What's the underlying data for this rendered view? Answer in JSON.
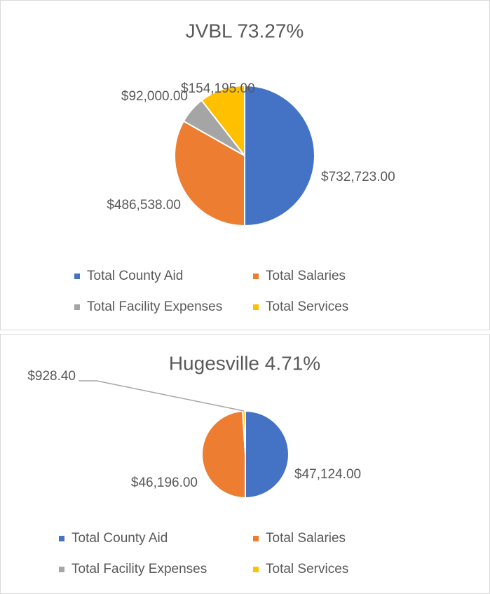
{
  "chart_data": [
    {
      "type": "pie",
      "title": "JVBL 73.27%",
      "categories": [
        "Total County Aid",
        "Total Salaries",
        "Total Facility Expenses",
        "Total Services"
      ],
      "values": [
        732723,
        486538,
        92000,
        154195
      ],
      "value_labels": [
        "$732,723.00",
        "$486,538.00",
        "$92,000.00",
        "$154,195.00"
      ],
      "colors": [
        "#4472c4",
        "#ed7d31",
        "#a5a5a5",
        "#ffc000"
      ]
    },
    {
      "type": "pie",
      "title": "Hugesville 4.71%",
      "categories": [
        "Total County Aid",
        "Total Salaries",
        "Total Facility Expenses",
        "Total Services"
      ],
      "values": [
        47124,
        46196,
        null,
        928.4
      ],
      "value_labels": [
        "$47,124.00",
        "$46,196.00",
        null,
        "$928.40"
      ],
      "colors": [
        "#4472c4",
        "#ed7d31",
        "#a5a5a5",
        "#ffc000"
      ]
    }
  ]
}
